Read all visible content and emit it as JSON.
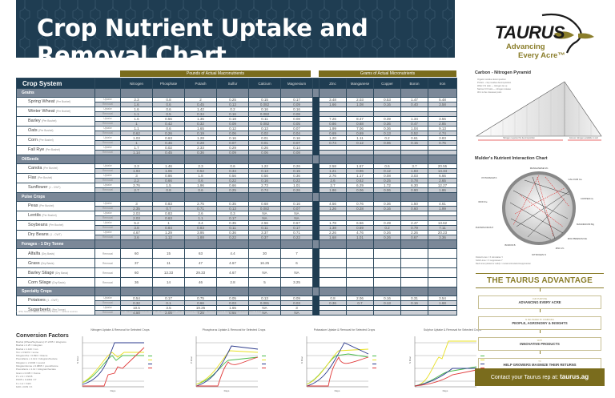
{
  "title": "Crop Nutrient Uptake and Removal Chart",
  "logo": {
    "brand": "TAURUS",
    "tagline_line1": "Advancing",
    "tagline_line2": "Every Acre™"
  },
  "groups": {
    "macro": "Pounds of Actual Macronutrients",
    "micro": "Grams of Actual Micronutrients"
  },
  "columns": {
    "crop_system": "Crop System",
    "macro": [
      "Nitrogen",
      "Phosphate",
      "Potash",
      "Sulfur",
      "Calcium",
      "Magnesium"
    ],
    "micro": [
      "Zinc",
      "Manganese",
      "Copper",
      "Boron",
      "Iron"
    ]
  },
  "row_types": {
    "uptake": "Uptake",
    "removal": "Removal"
  },
  "categories": [
    {
      "name": "Grains",
      "crops": [
        {
          "name": "Spring Wheat",
          "unit": "(Per Bushel)",
          "uptake": [
            "2.3",
            "0.8",
            "2",
            "0.25",
            "0.15",
            "0.17",
            "3.48",
            "2.03",
            "0.53",
            "1.47",
            "5.48"
          ],
          "removal": [
            "1.6",
            "0.6",
            "0.45",
            "0.13",
            "0.082",
            "0.09",
            "1.66",
            "1.08",
            "0.16",
            "0.40",
            "3.58"
          ]
        },
        {
          "name": "Winter Wheat",
          "unit": "(Per Bushel)",
          "uptake": [
            "1.6",
            "0.6",
            "1.42",
            "0.2",
            "0.16",
            "0.16",
            "",
            "",
            "",
            "",
            ""
          ],
          "removal": [
            "1.1",
            "0.5",
            "0.34",
            "0.16",
            "0.082",
            "0.08",
            "",
            "",
            "",
            "",
            ""
          ]
        },
        {
          "name": "Barley",
          "unit": "(Per Bushel)",
          "uptake": [
            "1.6",
            "0.56",
            "1.35",
            "0.18",
            "0.11",
            "0.08",
            "7.26",
            "8.47",
            "0.39",
            "1.34",
            "3.56"
          ],
          "removal": [
            "1",
            "0.42",
            "0.32",
            "0.09",
            "0.082",
            "0.05",
            "0.86",
            "0.68",
            "0.36",
            "0.47",
            "2.85"
          ]
        },
        {
          "name": "Oats",
          "unit": "(Per Bushel)",
          "uptake": [
            "1.1",
            "0.6",
            "1.65",
            "0.12",
            "0.13",
            "0.07",
            "1.99",
            "7.06",
            "0.36",
            "1.04",
            "9.13"
          ],
          "removal": [
            "0.62",
            "0.26",
            "0.19",
            "0.06",
            "0.02",
            "0.04",
            "0.69",
            "0.69",
            "0.13",
            "0.52",
            "4.74"
          ]
        },
        {
          "name": "Corn",
          "unit": "(Per Bushel)",
          "uptake": [
            "1.03",
            "0.63",
            "1.28",
            "0.16",
            "0.01",
            "0.16",
            "1.20",
            "1.11",
            "0.2",
            "0.61",
            "3.83"
          ],
          "removal": [
            "1",
            "0.46",
            "0.28",
            "0.07",
            "0.01",
            "0.07",
            "0.74",
            "0.12",
            "0.06",
            "0.15",
            "0.76"
          ]
        },
        {
          "name": "Fall Rye",
          "unit": "(Per Bushel)",
          "uptake": [
            "1.7",
            "0.02",
            "2.33",
            "0.29",
            "0.26",
            "0.14",
            "",
            "",
            "",
            "",
            ""
          ],
          "removal": [
            "1.14",
            "0.45",
            "0.36",
            "0.09",
            "0.06",
            "0.08",
            "",
            "",
            "",
            "",
            ""
          ]
        }
      ]
    },
    {
      "name": "OilSeeds",
      "crops": [
        {
          "name": "Canola",
          "unit": "(Per Bushel)",
          "uptake": [
            "3.3",
            "1.46",
            "2.3",
            "0.6",
            "1.22",
            "0.26",
            "2.58",
            "1.67",
            "0.6",
            "3.7",
            "20.55"
          ],
          "removal": [
            "1.93",
            "1.06",
            "0.52",
            "0.34",
            "0.13",
            "0.15",
            "1.21",
            "0.96",
            "0.12",
            "1.83",
            "14.34"
          ]
        },
        {
          "name": "Flax",
          "unit": "(Per Bushel)",
          "uptake": [
            "3",
            "0.86",
            "1.8",
            "0.56",
            "0.56",
            "0.36",
            "2.76",
            "1.17",
            "0.08",
            "3.03",
            "6.66"
          ],
          "removal": [
            "2.2",
            "0.66",
            "0.6",
            "0.22",
            "0.16",
            "0.22",
            "2.6",
            "0.62",
            "0.25",
            "0.78",
            "2.65"
          ]
        },
        {
          "name": "Sunflower",
          "unit": "(1 - CWT)",
          "uptake": [
            "3.76",
            "1.5",
            "1.96",
            "0.66",
            "2.73",
            "1.01",
            "2.7",
            "6.29",
            "1.72",
            "6.30",
            "12.27"
          ],
          "removal": [
            "2.7",
            "0.8",
            "0.6",
            "0.25",
            "0.74",
            "0.26",
            "1.86",
            "0.06",
            "0.06",
            "0.90",
            "1.86"
          ]
        }
      ]
    },
    {
      "name": "Pulse Crops",
      "crops": [
        {
          "name": "Peas",
          "unit": "(Per Bushel)",
          "uptake": [
            "3",
            "0.83",
            "2.75",
            "0.35",
            "0.68",
            "0.16",
            "4.56",
            "0.76",
            "0.36",
            "1.50",
            "4.61"
          ],
          "removal": [
            "2.35",
            "0.7",
            "0.71",
            "0.13",
            "0.082",
            "0.07",
            "1.26",
            "0.28",
            "0.16",
            "0.60",
            "1.99"
          ]
        },
        {
          "name": "Lentils",
          "unit": "(Per Bushel)",
          "uptake": [
            "2.03",
            "0.83",
            "2.6",
            "0.3",
            "NA",
            "NA",
            "",
            "",
            "",
            "",
            ""
          ],
          "removal": [
            "2.03",
            "0.63",
            "1.1",
            "0.17",
            "NA",
            "NA",
            "",
            "",
            "",
            "",
            ""
          ]
        },
        {
          "name": "Soybeans",
          "unit": "(Per Bushel)",
          "uptake": [
            "5.2",
            "1",
            "3.4",
            "0.35",
            "2.56",
            "0.67",
            "1.78",
            "6.56",
            "0.49",
            "2.47",
            "13.62"
          ],
          "removal": [
            "3.8",
            "0.84",
            "0.83",
            "0.11",
            "0.11",
            "0.17",
            "1.38",
            "0.69",
            "0.2",
            "0.79",
            "7.11"
          ]
        },
        {
          "name": "Dry Beans",
          "unit": "(1 - CWT)",
          "uptake": [
            "4.67",
            "1.29",
            "3.95",
            "0.36",
            "3.37",
            "0.71",
            "2.26",
            "4.76",
            "0.26",
            "2.26",
            "20.23"
          ],
          "removal": [
            "3.6",
            "1.12",
            "1.88",
            "0.22",
            "0.37",
            "0.22",
            "1.68",
            "1.01",
            "0.26",
            "0.67",
            "3.36"
          ]
        }
      ]
    },
    {
      "name": "Forages - 1 Dry Tonne",
      "single": true,
      "crops": [
        {
          "name": "Alfalfa",
          "unit": "(Dry Basis)",
          "removal": [
            "60",
            "15",
            "63",
            "4.4",
            "30",
            "7",
            "",
            "",
            "",
            "",
            ""
          ]
        },
        {
          "name": "Grass",
          "unit": "(Dry Basis)",
          "removal": [
            "37",
            "11",
            "47",
            "4.67",
            "16.25",
            "6",
            "",
            "",
            "",
            "",
            ""
          ]
        },
        {
          "name": "Barley Silage",
          "unit": "(Dry Basis)",
          "removal": [
            "60",
            "13.33",
            "29.33",
            "4.67",
            "NA",
            "NA",
            "",
            "",
            "",
            "",
            ""
          ]
        },
        {
          "name": "Corn Silage",
          "unit": "(Dry Basis)",
          "removal": [
            "36",
            "14",
            "46",
            "2.8",
            "5",
            "3.25",
            "",
            "",
            "",
            "",
            ""
          ]
        }
      ]
    },
    {
      "name": "Specialty Crops",
      "crops": [
        {
          "name": "Potatoes",
          "unit": "(1 - CWT)",
          "uptake": [
            "0.54",
            "0.17",
            "0.75",
            "0.05",
            "0.13",
            "0.09",
            "0.8",
            "2.06",
            "0.16",
            "0.31",
            "3.54"
          ],
          "removal": [
            "0.32",
            "0.1",
            "0.66",
            "0.03",
            "0.081",
            "0.03",
            "0.36",
            "0.7",
            "0.13",
            "0.16",
            "1.68"
          ]
        },
        {
          "name": "Sugarbeets",
          "unit": "(Per Tonne)",
          "uptake": [
            "10.5",
            "3.5",
            "19.25",
            "1.65",
            "NA",
            "3",
            "",
            "",
            "",
            "",
            ""
          ],
          "removal": [
            "4.50",
            "2.05",
            "7.25",
            "0.65",
            "NA",
            "NA",
            "",
            "",
            "",
            "",
            ""
          ]
        }
      ]
    }
  ],
  "footnotes": {
    "left": "1. IPNI, Nutrient Uptake & Removal Tables — various sources",
    "right": "Note: Values are approximate and will vary with soil type, yield and growing conditions. Removal refers to nutrients in harvested portion of crop."
  },
  "conversion": {
    "title": "Conversion Factors",
    "items": [
      "Bushel (Wheat/Soybeans) 27.2155 = kilograms",
      "Bushel x 2.25 = kilogram",
      "Bushel x 1.120 = ton",
      "Ton x 0.9072 = tonne",
      "Kilogram/ha = 0.893 = lb/acre",
      "Pound/acre x 1.121 = kilogram/hectare",
      "Kilogram x 2.2046 = pound",
      "Kilogram/tonne x 0.0895 = pound/tonne",
      "Pound/acre x 1.12 = kilogram/hectare",
      "Gram x 0.035 = Ounce",
      "P x 2.3 = P2O5",
      "P2O5 x 0.4364 = P",
      "K x 1.2 = K2O",
      "K2O x 0.83 = K"
    ]
  },
  "mini_charts": [
    {
      "title": "Nitrogen Uptake & Removal for Selected Crops",
      "xlabel": "Days",
      "ylabel": "N lb/ac"
    },
    {
      "title": "Phosphorus Uptake & Removal for Selected Crops",
      "xlabel": "Days",
      "ylabel": "P lb/ac"
    },
    {
      "title": "Potassium Uptake & Removal for Selected Crops",
      "xlabel": "Days",
      "ylabel": "K lb/ac"
    },
    {
      "title": "Sulphur Uptake & Removal for Selected Crops",
      "xlabel": "Days",
      "ylabel": "S lb/ac"
    }
  ],
  "mini_legend": [
    "Spring Wheat",
    "Canola",
    "Corn",
    "Soybean"
  ],
  "series_colors": {
    "wheat": "#4cbb4c",
    "canola": "#e8e022",
    "corn": "#2b3a8c",
    "soybean": "#e03a3a"
  },
  "pyramid": {
    "title": "Carbon - Nitrogen Pyramid",
    "left_label": "Nitrogen required for decomposition",
    "right_label": "Excess nitrogen available to soil",
    "notes": [
      "Organic residue decomposition",
      "Protein - crop residue decomposition",
      "Wide C:N ratio — nitrogen tie up",
      "Narrow C:N ratio — nitrogen release",
      "30:1 is the crossover point"
    ]
  },
  "mulder": {
    "title": "Mulder's Nutrient Interaction Chart",
    "nutrients": [
      "MANGANESE Mn",
      "CALCIUM Ca",
      "COPPER Cu",
      "MAGNESIUM Mg",
      "MOLYBDENUM Mo",
      "ZINC Zn",
      "NITROGEN N",
      "BORON B",
      "PHOSPHORUS P",
      "IRON Fe",
      "POTASSIUM K"
    ],
    "legend": [
      "Dotted Lines = X stimulates Y",
      "Solid Lines = X suppresses Y",
      "Red Lines (dotted or solid) = mutual stimulation/suppression"
    ]
  },
  "advantage": {
    "title": "THE TAURUS ADVANTAGE",
    "steps": [
      {
        "small": "OUR PURPOSE",
        "main": "ADVANCING EVERY ACRE"
      },
      {
        "small": "IS DELIVERED BY COMBINING",
        "main": "PEOPLE, AGRONOMY & INSIGHTS"
      },
      {
        "small": "WITH",
        "main": "INNOVATIVE PRODUCTS"
      },
      {
        "small": "TO",
        "main": "HELP GROWERS MAXIMIZE THEIR RETURNS"
      }
    ]
  },
  "contact": {
    "text": "Contact your Taurus rep at: ",
    "url": "taurus.ag"
  }
}
